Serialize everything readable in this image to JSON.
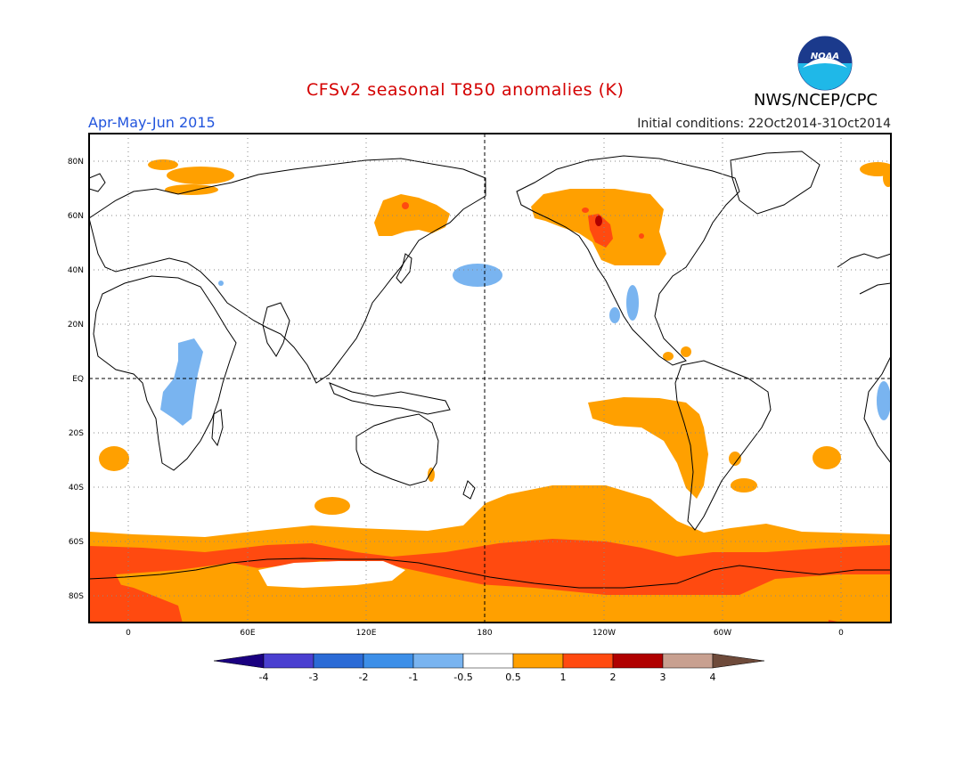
{
  "header": {
    "title": "CFSv2 seasonal T850 anomalies (K)",
    "period": "Apr-May-Jun 2015",
    "initial_conditions": "Initial conditions: 22Oct2014-31Oct2014",
    "agency": "NWS/NCEP/CPC",
    "logo_text": "NOAA"
  },
  "map": {
    "lat_labels": [
      "80N",
      "60N",
      "40N",
      "20N",
      "EQ",
      "20S",
      "40S",
      "60S",
      "80S"
    ],
    "lon_labels": [
      "0",
      "60E",
      "120E",
      "180",
      "120W",
      "60W",
      "0"
    ]
  },
  "colorbar": {
    "labels": [
      "-4",
      "-3",
      "-2",
      "-1",
      "-0.5",
      "0.5",
      "1",
      "2",
      "3",
      "4"
    ],
    "colors": [
      "#1a0080",
      "#4a3fd0",
      "#2b6bd6",
      "#3d8fe8",
      "#79b4f0",
      "#ffffff",
      "#ffa000",
      "#ff4a10",
      "#b00000",
      "#c8a090",
      "#6e4a3a"
    ]
  },
  "colors": {
    "title": "#d40000",
    "period": "#2255dd",
    "orange": "#ffa000",
    "red": "#ff4a10",
    "lightblue": "#79b4f0",
    "darkred": "#b00000"
  }
}
